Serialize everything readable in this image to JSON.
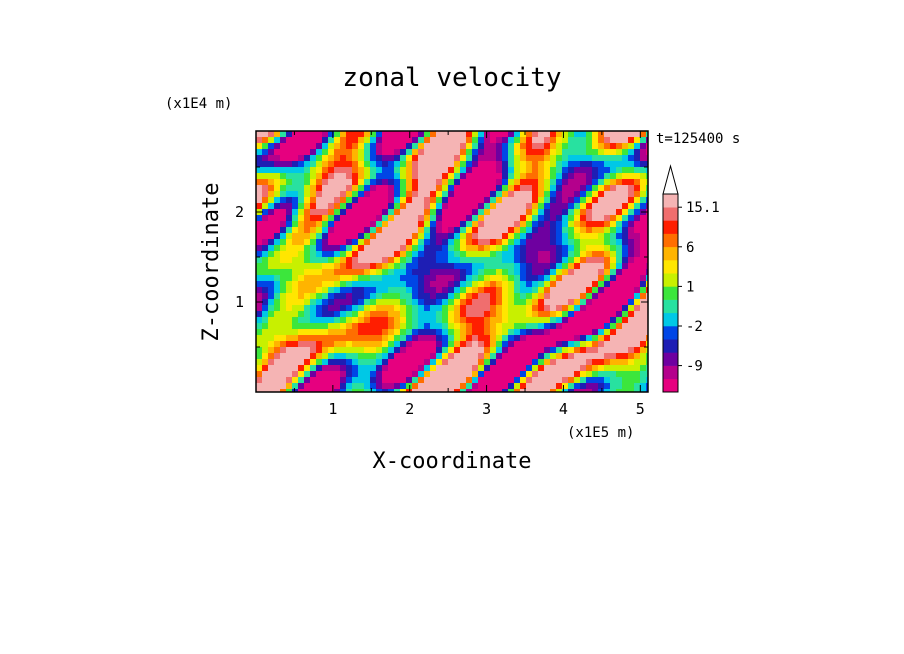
{
  "chart_data": {
    "type": "heatmap",
    "title": "zonal velocity",
    "xlabel": "X-coordinate",
    "ylabel": "Z-coordinate",
    "x_unit": "(x1E5 m)",
    "y_unit": "(x1E4 m)",
    "time_label": "t=125400 s",
    "x_ticks": [
      "1",
      "2",
      "3",
      "4",
      "5"
    ],
    "y_ticks": [
      "1",
      "2"
    ],
    "xlim": [
      0,
      5.1
    ],
    "ylim": [
      0,
      2.9
    ],
    "colorbar": {
      "tick_labels": [
        "15.1",
        "6",
        "1",
        "-2",
        "-9"
      ],
      "levels": [
        -15,
        -12,
        -9,
        -6,
        -4,
        -2,
        -1,
        0,
        1,
        2,
        4,
        6,
        9,
        12,
        15.1
      ],
      "colors": [
        "#e6007f",
        "#b4008c",
        "#6e00a0",
        "#1e1eb4",
        "#0046e6",
        "#00c8e6",
        "#28e1a0",
        "#3ce63c",
        "#c8f000",
        "#ffe600",
        "#ffb400",
        "#ff6e00",
        "#ff1e00",
        "#f06e6e",
        "#f5b4b4"
      ],
      "extend_max": true
    },
    "field_description_hidden": true
  }
}
